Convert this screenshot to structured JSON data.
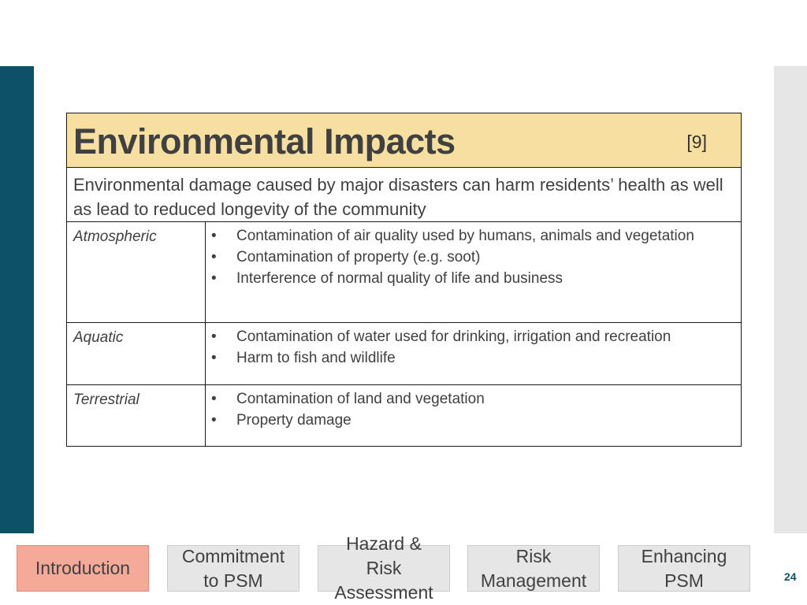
{
  "slide": {
    "title": "Environmental Impacts",
    "reference": "[9]",
    "description": "Environmental damage caused by major disasters can harm residents’ health as well as lead to reduced longevity of the community",
    "rows": [
      {
        "category": "Atmospheric",
        "items": [
          "Contamination of air quality used by humans, animals and vegetation",
          "Contamination of property (e.g. soot)",
          "Interference of normal quality of life and business"
        ]
      },
      {
        "category": "Aquatic",
        "items": [
          "Contamination of water used for drinking, irrigation and recreation",
          "Harm to fish and wildlife"
        ]
      },
      {
        "category": "Terrestrial",
        "items": [
          "Contamination of land and vegetation",
          "Property damage"
        ]
      }
    ],
    "bullet": "•"
  },
  "nav": {
    "introduction": "Introduction",
    "commitment": "Commitment to PSM",
    "hazard": "Hazard & Risk Assessment",
    "risk": "Risk Management",
    "enhancing": "Enhancing PSM"
  },
  "page_number": "24",
  "colors": {
    "accent_bar": "#0d5166",
    "title_background": "#f6dfa1",
    "active_nav": "#f5aa99",
    "inactive_nav": "#e6e6e6"
  }
}
